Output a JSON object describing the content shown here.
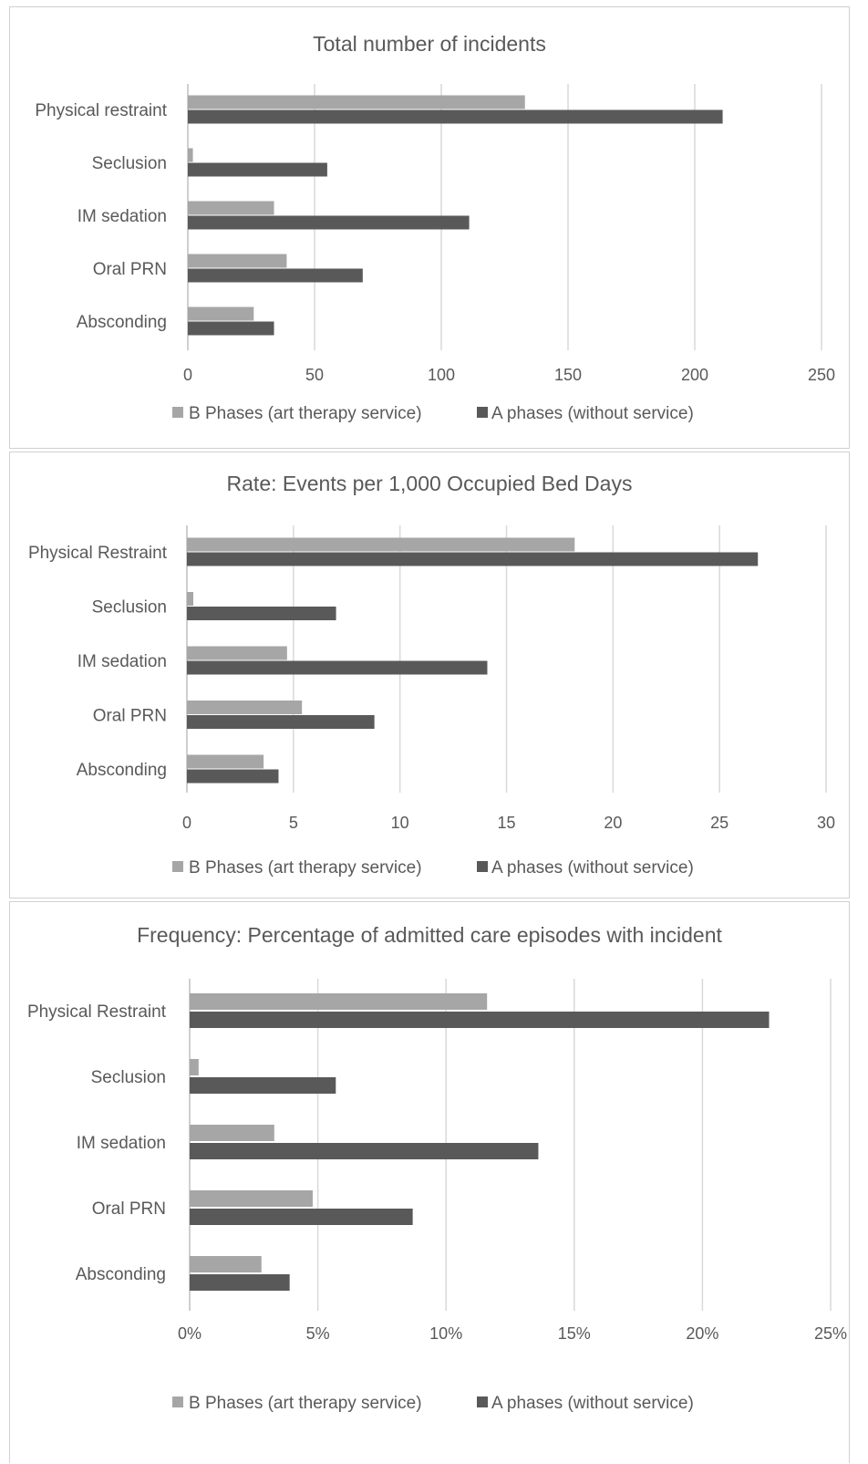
{
  "legend": {
    "b_label": "B Phases (art therapy service)",
    "a_label": "A phases (without service)"
  },
  "colors": {
    "b_series": "#a6a6a6",
    "a_series": "#595959"
  },
  "chart_data": [
    {
      "type": "bar",
      "orientation": "horizontal",
      "title": "Total number of incidents",
      "categories": [
        "Physical restraint",
        "Seclusion",
        "IM sedation",
        "Oral PRN",
        "Absconding"
      ],
      "series": [
        {
          "name": "B Phases (art therapy service)",
          "values": [
            133,
            2,
            34,
            39,
            26
          ]
        },
        {
          "name": "A phases (without service)",
          "values": [
            211,
            55,
            111,
            69,
            34
          ]
        }
      ],
      "xlim": [
        0,
        250
      ],
      "xticks": [
        "0",
        "50",
        "100",
        "150",
        "200",
        "250"
      ],
      "grid": true,
      "legend_position": "bottom"
    },
    {
      "type": "bar",
      "orientation": "horizontal",
      "title": "Rate: Events per 1,000 Occupied Bed Days",
      "categories": [
        "Physical Restraint",
        "Seclusion",
        "IM sedation",
        "Oral PRN",
        "Absconding"
      ],
      "series": [
        {
          "name": "B Phases (art therapy service)",
          "values": [
            18.2,
            0.3,
            4.7,
            5.4,
            3.6
          ]
        },
        {
          "name": "A phases (without service)",
          "values": [
            26.8,
            7.0,
            14.1,
            8.8,
            4.3
          ]
        }
      ],
      "xlim": [
        0,
        30
      ],
      "xticks": [
        "0",
        "5",
        "10",
        "15",
        "20",
        "25",
        "30"
      ],
      "grid": true,
      "legend_position": "bottom"
    },
    {
      "type": "bar",
      "orientation": "horizontal",
      "title": "Frequency: Percentage of admitted care episodes with incident",
      "categories": [
        "Physical Restraint",
        "Seclusion",
        "IM sedation",
        "Oral PRN",
        "Absconding"
      ],
      "series": [
        {
          "name": "B Phases (art therapy service)",
          "values": [
            11.6,
            0.35,
            3.3,
            4.8,
            2.8
          ]
        },
        {
          "name": "A phases (without service)",
          "values": [
            22.6,
            5.7,
            13.6,
            8.7,
            3.9
          ]
        }
      ],
      "xlim": [
        0,
        25
      ],
      "xticks": [
        "0%",
        "5%",
        "10%",
        "15%",
        "20%",
        "25%"
      ],
      "grid": true,
      "legend_position": "bottom"
    }
  ]
}
